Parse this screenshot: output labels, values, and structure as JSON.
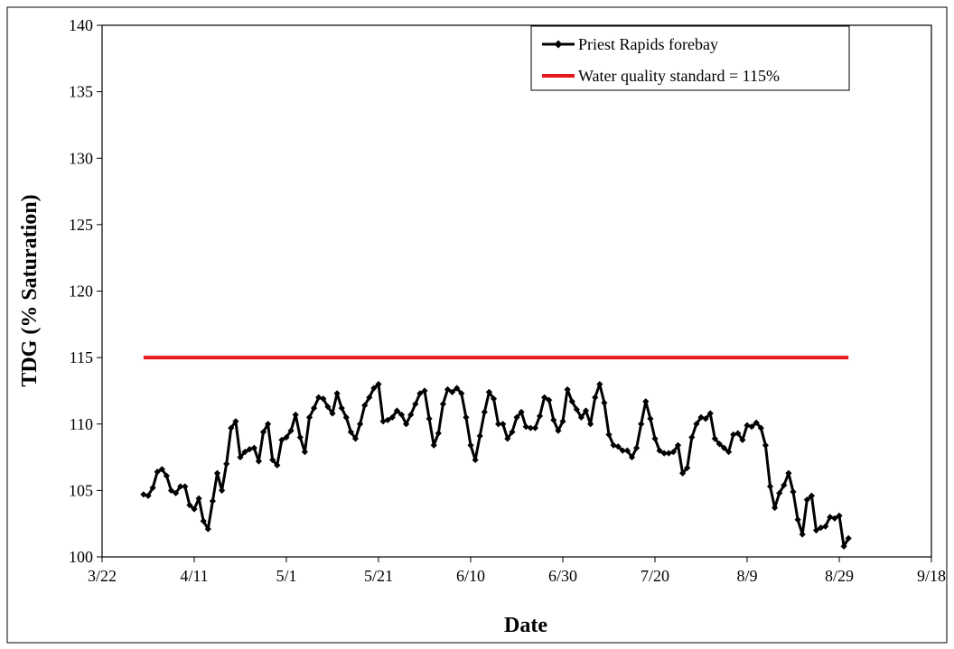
{
  "chart_data": {
    "type": "line",
    "title": "",
    "xlabel": "Date",
    "ylabel": "TDG (% Saturation)",
    "ylim": [
      100,
      140
    ],
    "yticks": [
      100,
      105,
      110,
      115,
      120,
      125,
      130,
      135,
      140
    ],
    "xlim": [
      "3/22",
      "9/18"
    ],
    "xticks": [
      "3/22",
      "4/11",
      "5/1",
      "5/21",
      "6/10",
      "6/30",
      "7/20",
      "8/9",
      "8/29",
      "9/18"
    ],
    "grid": false,
    "legend_position": "top-right",
    "series": [
      {
        "name": "Priest Rapids forebay",
        "color": "#000000",
        "marker": "diamond",
        "x": [
          "3/31",
          "4/1",
          "4/2",
          "4/3",
          "4/4",
          "4/5",
          "4/6",
          "4/7",
          "4/8",
          "4/9",
          "4/10",
          "4/11",
          "4/12",
          "4/13",
          "4/14",
          "4/15",
          "4/16",
          "4/17",
          "4/18",
          "4/19",
          "4/20",
          "4/21",
          "4/22",
          "4/23",
          "4/24",
          "4/25",
          "4/26",
          "4/27",
          "4/28",
          "4/29",
          "4/30",
          "5/1",
          "5/2",
          "5/3",
          "5/4",
          "5/5",
          "5/6",
          "5/7",
          "5/8",
          "5/9",
          "5/10",
          "5/11",
          "5/12",
          "5/13",
          "5/14",
          "5/15",
          "5/16",
          "5/17",
          "5/18",
          "5/19",
          "5/20",
          "5/21",
          "5/22",
          "5/23",
          "5/24",
          "5/25",
          "5/26",
          "5/27",
          "5/28",
          "5/29",
          "5/30",
          "5/31",
          "6/1",
          "6/2",
          "6/3",
          "6/4",
          "6/5",
          "6/6",
          "6/7",
          "6/8",
          "6/9",
          "6/10",
          "6/11",
          "6/12",
          "6/13",
          "6/14",
          "6/15",
          "6/16",
          "6/17",
          "6/18",
          "6/19",
          "6/20",
          "6/21",
          "6/22",
          "6/23",
          "6/24",
          "6/25",
          "6/26",
          "6/27",
          "6/28",
          "6/29",
          "6/30",
          "7/1",
          "7/2",
          "7/3",
          "7/4",
          "7/5",
          "7/6",
          "7/7",
          "7/8",
          "7/9",
          "7/10",
          "7/11",
          "7/12",
          "7/13",
          "7/14",
          "7/15",
          "7/16",
          "7/17",
          "7/18",
          "7/19",
          "7/20",
          "7/21",
          "7/22",
          "7/23",
          "7/24",
          "7/25",
          "7/26",
          "7/27",
          "7/28",
          "7/29",
          "7/30",
          "7/31",
          "8/1",
          "8/2",
          "8/3",
          "8/4",
          "8/5",
          "8/6",
          "8/7",
          "8/8",
          "8/9",
          "8/10",
          "8/11",
          "8/12",
          "8/13",
          "8/14",
          "8/15",
          "8/16",
          "8/17",
          "8/18",
          "8/19",
          "8/20",
          "8/21",
          "8/22",
          "8/23",
          "8/24",
          "8/25",
          "8/26",
          "8/27",
          "8/28",
          "8/29",
          "8/30",
          "8/31"
        ],
        "values": [
          104.7,
          104.6,
          105.2,
          106.4,
          106.6,
          106.1,
          105.0,
          104.8,
          105.3,
          105.3,
          103.9,
          103.6,
          104.4,
          102.7,
          102.1,
          104.2,
          106.3,
          105.0,
          107.0,
          109.7,
          110.2,
          107.5,
          107.9,
          108.1,
          108.2,
          107.2,
          109.4,
          110.0,
          107.3,
          106.9,
          108.8,
          109.0,
          109.5,
          110.7,
          109.0,
          107.9,
          110.5,
          111.2,
          112.0,
          111.9,
          111.3,
          110.8,
          112.3,
          111.2,
          110.5,
          109.4,
          108.9,
          110.0,
          111.4,
          112.0,
          112.7,
          113.0,
          110.2,
          110.3,
          110.5,
          111.0,
          110.7,
          110.0,
          110.7,
          111.5,
          112.3,
          112.5,
          110.4,
          108.4,
          109.3,
          111.5,
          112.6,
          112.4,
          112.7,
          112.3,
          110.5,
          108.4,
          107.3,
          109.1,
          110.9,
          112.4,
          111.9,
          110.0,
          110.0,
          108.9,
          109.4,
          110.5,
          110.9,
          109.8,
          109.7,
          109.7,
          110.6,
          112.0,
          111.8,
          110.3,
          109.5,
          110.2,
          112.6,
          111.7,
          111.1,
          110.5,
          111.0,
          110.0,
          112.0,
          113.0,
          111.6,
          109.2,
          108.4,
          108.3,
          108.0,
          108.0,
          107.5,
          108.2,
          110.0,
          111.7,
          110.4,
          108.9,
          108.0,
          107.8,
          107.8,
          107.9,
          108.4,
          106.3,
          106.7,
          109.0,
          110.0,
          110.5,
          110.4,
          110.8,
          108.9,
          108.5,
          108.2,
          107.9,
          109.2,
          109.3,
          108.8,
          109.9,
          109.8,
          110.1,
          109.7,
          108.4,
          105.3,
          103.7,
          104.8,
          105.4,
          106.3,
          104.9,
          102.8,
          101.7,
          104.3,
          104.6,
          102.0,
          102.2,
          102.3,
          103.0,
          102.9,
          103.1,
          100.8,
          101.4
        ]
      },
      {
        "name": "Water quality standard = 115%",
        "color": "#e8191b",
        "marker": "none",
        "x": [
          "3/31",
          "8/31"
        ],
        "values": [
          115,
          115
        ]
      }
    ]
  }
}
